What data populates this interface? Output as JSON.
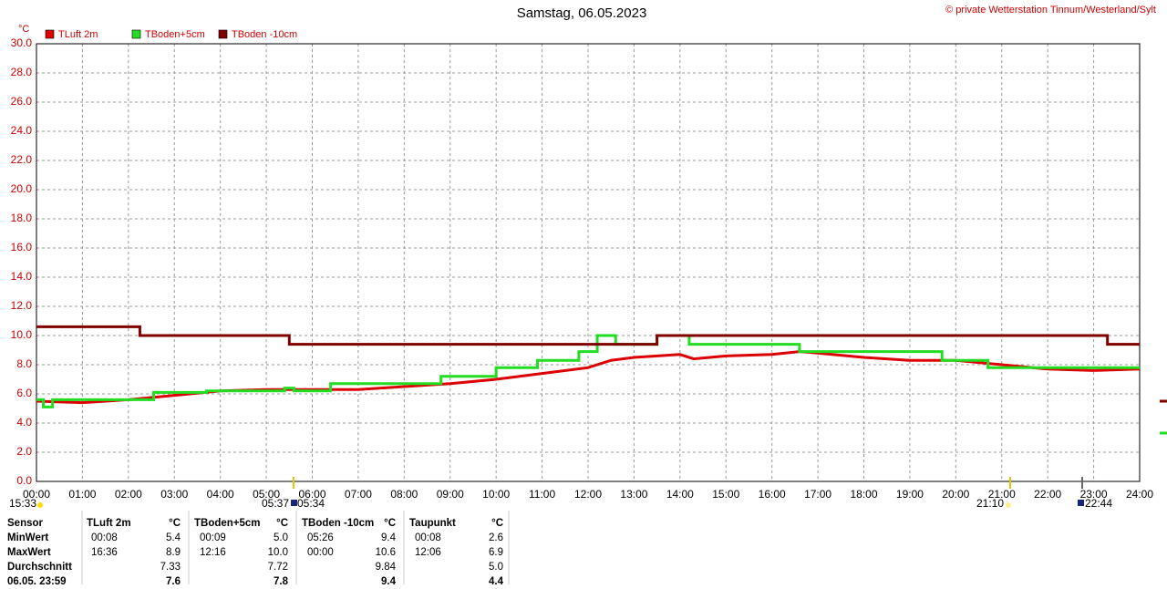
{
  "chart_data": {
    "type": "line",
    "title": "Samstag, 06.05.2023",
    "copyright": "© private Wetterstation Tinnum/Westerland/Sylt",
    "y_label": "°C",
    "xlim": [
      0,
      24
    ],
    "ylim": [
      0,
      30
    ],
    "grid": true,
    "xticks": [
      {
        "value": 0,
        "label": "00:00"
      },
      {
        "value": 1,
        "label": "01:00"
      },
      {
        "value": 2,
        "label": "02:00"
      },
      {
        "value": 3,
        "label": "03:00"
      },
      {
        "value": 4,
        "label": "04:00"
      },
      {
        "value": 5,
        "label": "05:00"
      },
      {
        "value": 6,
        "label": "06:00"
      },
      {
        "value": 7,
        "label": "07:00"
      },
      {
        "value": 8,
        "label": "08:00"
      },
      {
        "value": 9,
        "label": "09:00"
      },
      {
        "value": 10,
        "label": "10:00"
      },
      {
        "value": 11,
        "label": "11:00"
      },
      {
        "value": 12,
        "label": "12:00"
      },
      {
        "value": 13,
        "label": "13:00"
      },
      {
        "value": 14,
        "label": "14:00"
      },
      {
        "value": 15,
        "label": "15:00"
      },
      {
        "value": 16,
        "label": "16:00"
      },
      {
        "value": 17,
        "label": "17:00"
      },
      {
        "value": 18,
        "label": "18:00"
      },
      {
        "value": 19,
        "label": "19:00"
      },
      {
        "value": 20,
        "label": "20:00"
      },
      {
        "value": 21,
        "label": "21:00"
      },
      {
        "value": 22,
        "label": "22:00"
      },
      {
        "value": 23,
        "label": "23:00"
      },
      {
        "value": 24,
        "label": "24:00"
      }
    ],
    "yticks": [
      {
        "value": 0,
        "label": "0.0"
      },
      {
        "value": 2,
        "label": "2.0"
      },
      {
        "value": 4,
        "label": "4.0"
      },
      {
        "value": 6,
        "label": "6.0"
      },
      {
        "value": 8,
        "label": "8.0"
      },
      {
        "value": 10,
        "label": "10.0"
      },
      {
        "value": 12,
        "label": "12.0"
      },
      {
        "value": 14,
        "label": "14.0"
      },
      {
        "value": 16,
        "label": "16.0"
      },
      {
        "value": 18,
        "label": "18.0"
      },
      {
        "value": 20,
        "label": "20.0"
      },
      {
        "value": 22,
        "label": "22.0"
      },
      {
        "value": 24,
        "label": "24.0"
      },
      {
        "value": 26,
        "label": "26.0"
      },
      {
        "value": 28,
        "label": "28.0"
      },
      {
        "value": 30,
        "label": "30.0"
      }
    ],
    "series": [
      {
        "name": "TLuft 2m",
        "color": "#dd0000",
        "x": [
          0,
          1,
          2,
          3,
          4,
          5,
          6,
          7,
          8,
          9,
          10,
          11,
          12,
          12.5,
          13,
          13.5,
          14,
          14.3,
          15,
          16,
          16.6,
          17,
          18,
          18.5,
          19,
          20,
          21,
          22,
          23,
          24
        ],
        "values": [
          5.5,
          5.4,
          5.6,
          5.9,
          6.2,
          6.3,
          6.3,
          6.3,
          6.5,
          6.7,
          7.0,
          7.4,
          7.8,
          8.3,
          8.5,
          8.6,
          8.7,
          8.4,
          8.6,
          8.7,
          8.9,
          8.8,
          8.5,
          8.4,
          8.3,
          8.3,
          8.0,
          7.7,
          7.6,
          7.7
        ]
      },
      {
        "name": "TBoden+5cm",
        "color": "#22dd22",
        "x": [
          0,
          0.15,
          0.15,
          0.35,
          0.35,
          2.55,
          2.55,
          3.7,
          3.7,
          5.4,
          5.4,
          5.6,
          5.6,
          6.4,
          6.4,
          8.8,
          8.8,
          10.0,
          10.0,
          10.9,
          10.9,
          11.8,
          11.8,
          12.2,
          12.2,
          12.6,
          12.6,
          13.5,
          13.5,
          14.2,
          14.2,
          16.6,
          16.6,
          19.7,
          19.7,
          20.7,
          20.7,
          24
        ],
        "values": [
          5.6,
          5.6,
          5.1,
          5.1,
          5.6,
          5.6,
          6.1,
          6.1,
          6.2,
          6.2,
          6.4,
          6.4,
          6.2,
          6.2,
          6.7,
          6.7,
          7.2,
          7.2,
          7.8,
          7.8,
          8.3,
          8.3,
          8.9,
          8.9,
          10.0,
          10.0,
          9.4,
          9.4,
          10.0,
          10.0,
          9.4,
          9.4,
          8.9,
          8.9,
          8.3,
          8.3,
          7.8,
          7.8
        ]
      },
      {
        "name": "TBoden -10cm",
        "color": "#800000",
        "x": [
          0,
          2.25,
          2.25,
          5.5,
          5.5,
          13.5,
          13.5,
          23.3,
          23.3,
          24
        ],
        "values": [
          10.6,
          10.6,
          10.0,
          10.0,
          9.4,
          9.4,
          10.0,
          10.0,
          9.4,
          9.4
        ]
      }
    ],
    "events": [
      "15:33",
      "05:37",
      "05:34",
      "21:10",
      "22:44"
    ]
  },
  "table": {
    "header": [
      "Sensor",
      "TLuft 2m",
      "°C",
      "TBoden+5cm",
      "°C",
      "TBoden -10cm",
      "°C",
      "Taupunkt",
      "°C"
    ],
    "rows": [
      [
        "MinWert",
        "00:08",
        "5.4",
        "00:09",
        "5.0",
        "05:26",
        "9.4",
        "00:08",
        "2.6"
      ],
      [
        "MaxWert",
        "16:36",
        "8.9",
        "12:16",
        "10.0",
        "00:00",
        "10.6",
        "12:06",
        "6.9"
      ],
      [
        "Durchschnitt",
        null,
        "7.33",
        null,
        "7.72",
        null,
        "9.84",
        null,
        "5.0"
      ],
      [
        "06.05. 23:59",
        null,
        "7.6",
        null,
        "7.8",
        null,
        "9.4",
        null,
        "4.4"
      ]
    ]
  }
}
